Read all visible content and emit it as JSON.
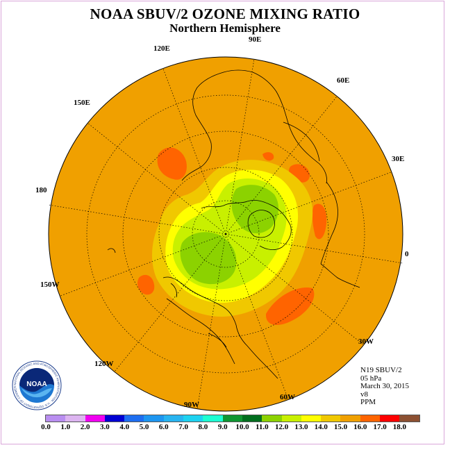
{
  "header": {
    "title": "NOAA SBUV/2 OZONE MIXING RATIO",
    "subtitle": "Northern Hemisphere"
  },
  "map": {
    "projection": "north polar stereographic",
    "longitude_labels": [
      "90E",
      "60E",
      "30E",
      "0",
      "30W",
      "60W",
      "90W",
      "120W",
      "150W",
      "180",
      "150E",
      "120E"
    ]
  },
  "info": {
    "satellite": "N19 SBUV/2",
    "level": "05 hPa",
    "date": "March 30, 2015",
    "version": "v8",
    "units": "PPM"
  },
  "legend": {
    "ticks": [
      "0.0",
      "1.0",
      "2.0",
      "3.0",
      "4.0",
      "5.0",
      "6.0",
      "7.0",
      "8.0",
      "9.0",
      "10.0",
      "11.0",
      "12.0",
      "13.0",
      "14.0",
      "15.0",
      "16.0",
      "17.0",
      "18.0"
    ],
    "colors": [
      "#b98ef0",
      "#dcb4f0",
      "#f000f0",
      "#0000d2",
      "#1e6ef0",
      "#1e96f0",
      "#28b4f0",
      "#1ed2f0",
      "#1effd2",
      "#0f9632",
      "#006e1e",
      "#8cd200",
      "#c8f000",
      "#ffff00",
      "#f0c800",
      "#f0a000",
      "#ff6400",
      "#ff0000",
      "#8c5032"
    ]
  },
  "logo": {
    "text": "NOAA",
    "ring_text": "NATIONAL OCEANIC AND ATMOSPHERIC ADMINISTRATION · U.S. DEPARTMENT OF COMMERCE",
    "icon": "noaa-logo-icon"
  }
}
